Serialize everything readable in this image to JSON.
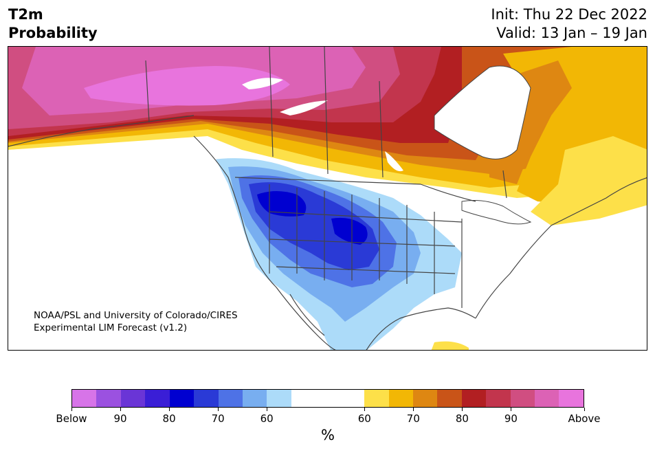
{
  "header": {
    "variable": "T2m",
    "product": "Probability",
    "init": "Init: Thu 22 Dec 2022",
    "valid": "Valid: 13 Jan – 19 Jan"
  },
  "map": {
    "region": "North America",
    "credit_line1": "NOAA/PSL and University of Colorado/CIRES",
    "credit_line2": "Experimental LIM Forecast (v1.2)"
  },
  "colorbar": {
    "unit": "%",
    "ticks": [
      "Below",
      "90",
      "80",
      "70",
      "60",
      "60",
      "70",
      "80",
      "90",
      "Above"
    ],
    "below_colors": [
      "#d774e8",
      "#9b51e0",
      "#6a35d6",
      "#3a1ed6",
      "#0000d0",
      "#2a3ad6",
      "#4e72e6",
      "#78aef0",
      "#acdbf9"
    ],
    "neutral_color": "#ffffff",
    "above_colors": [
      "#fde049",
      "#f2b705",
      "#de8712",
      "#c95418",
      "#b21f22",
      "#c2354d",
      "#d04e81",
      "#dc62b5",
      "#e874dd"
    ]
  }
}
